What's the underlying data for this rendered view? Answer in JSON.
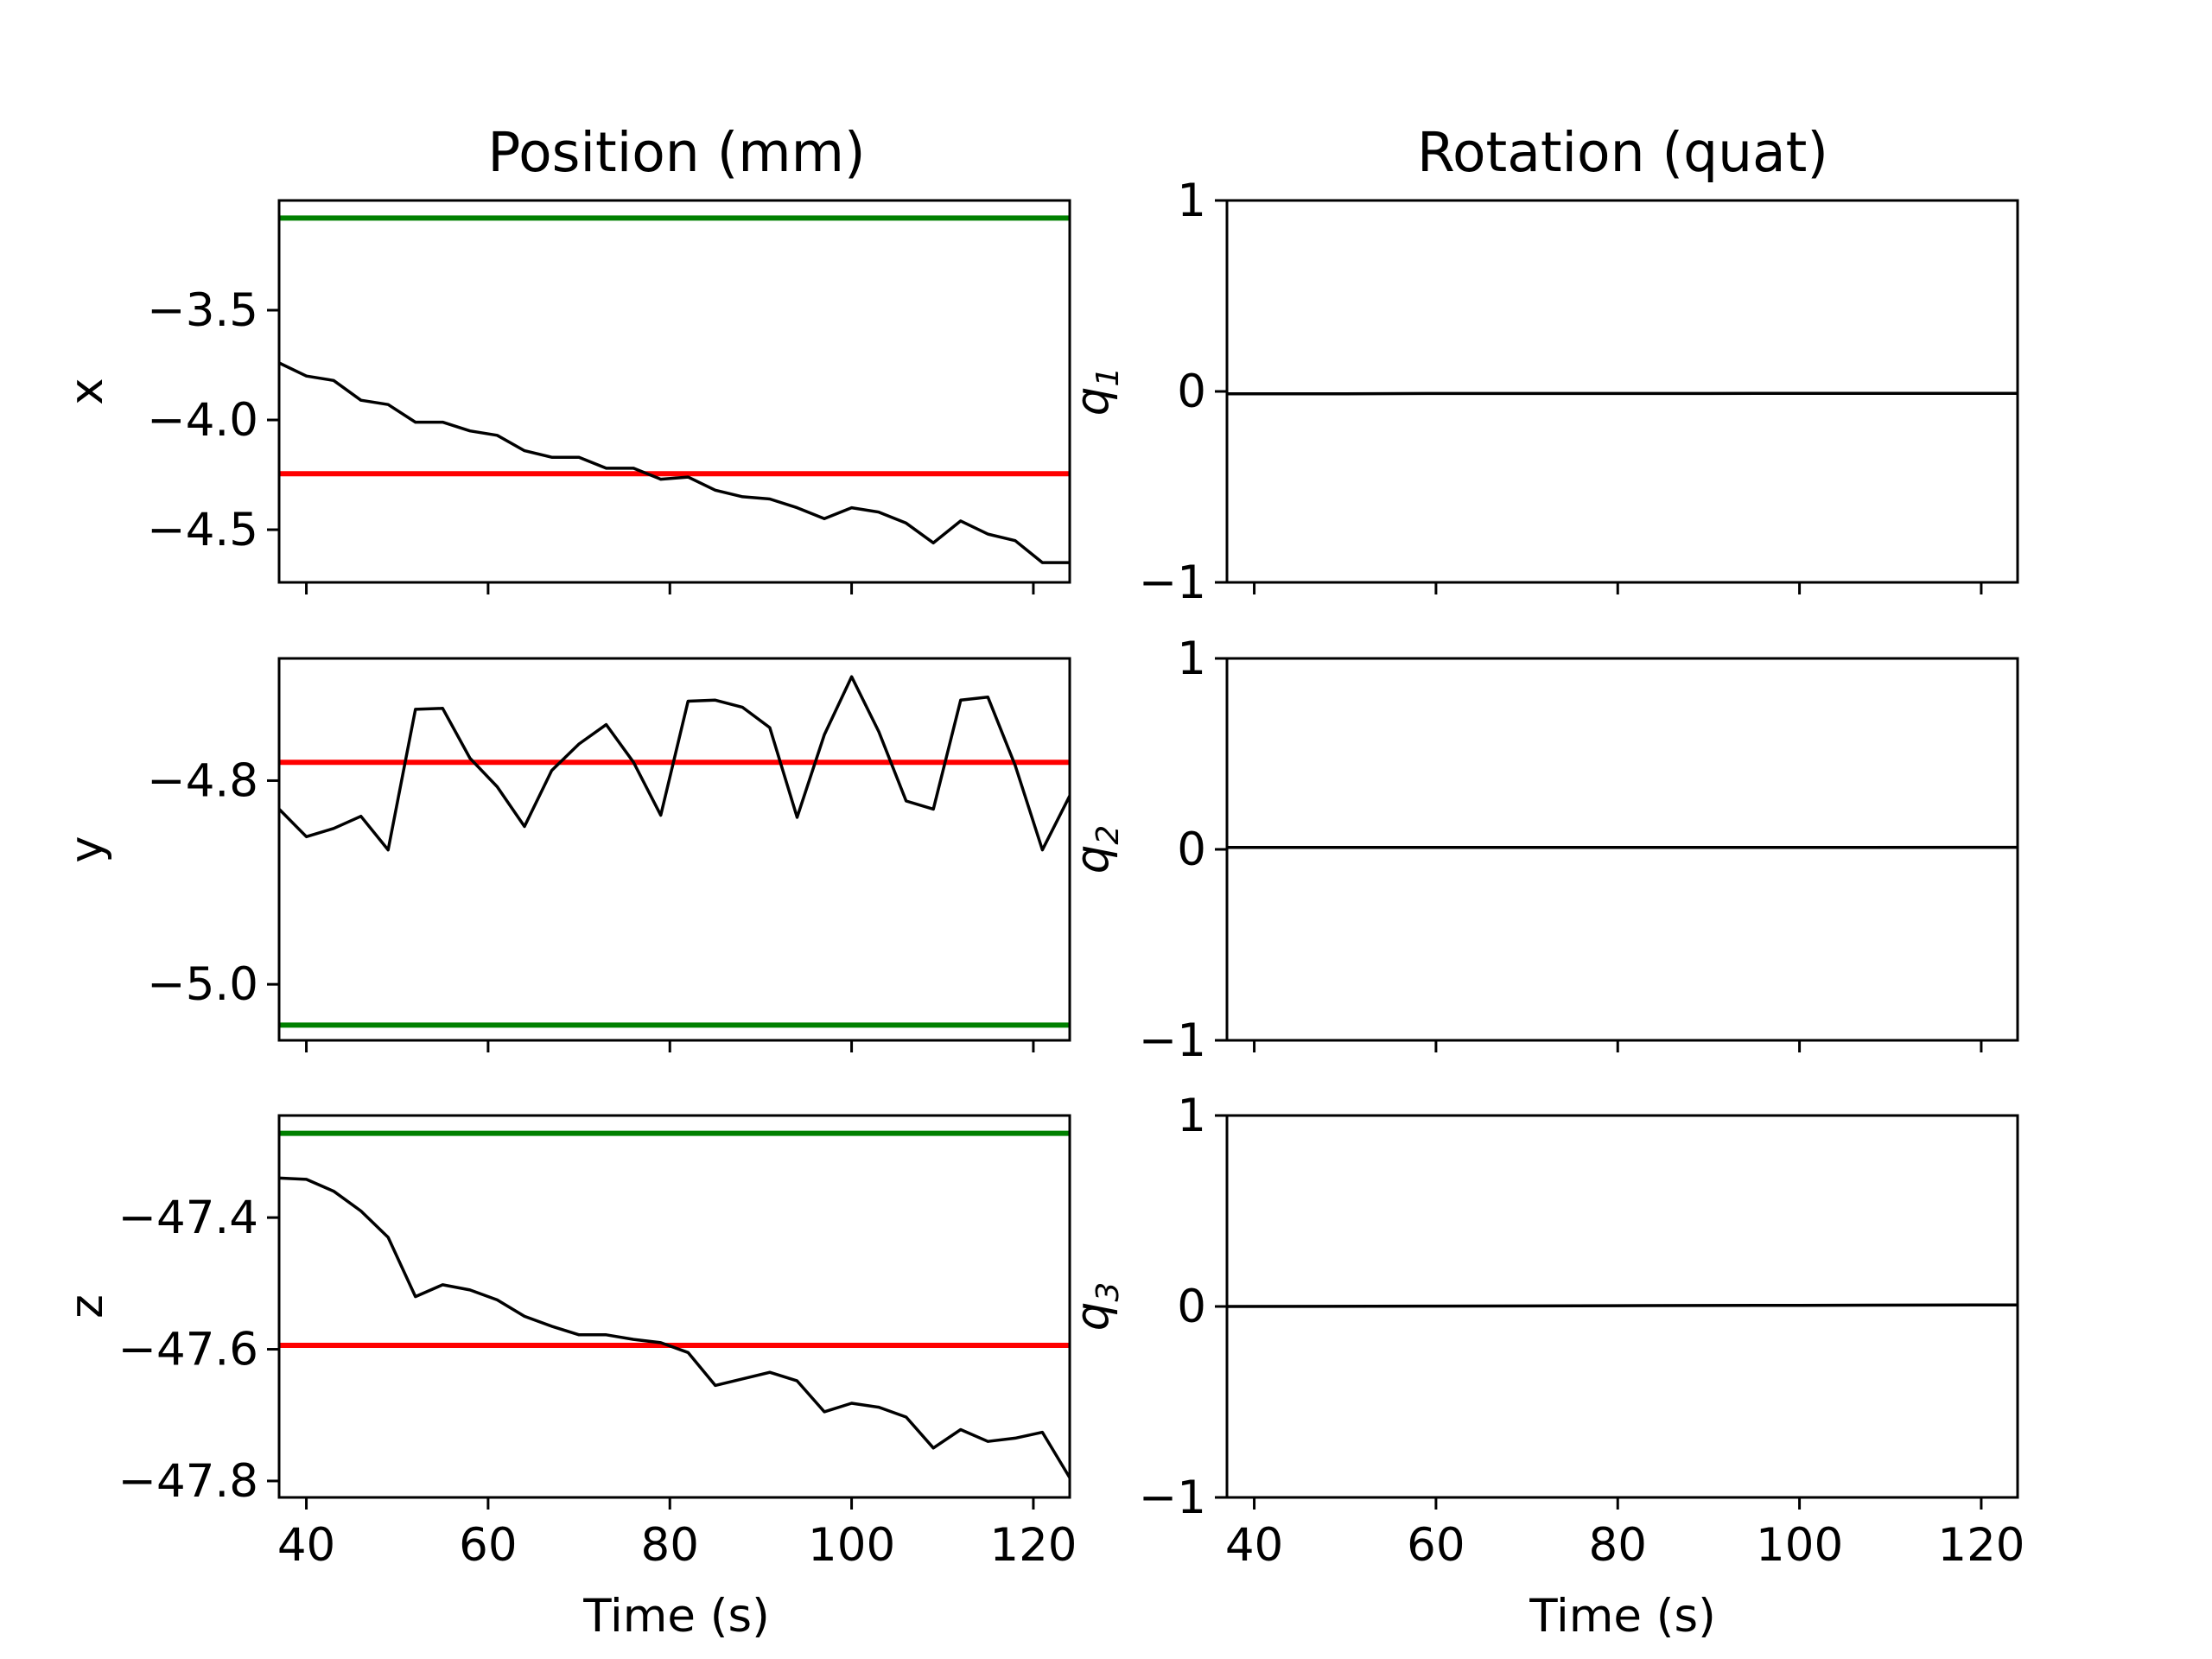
{
  "titles": {
    "left": "Position (mm)",
    "right": "Rotation (quat)"
  },
  "xlabel": "Time (s)",
  "chart_data": [
    {
      "type": "line",
      "panel": "x",
      "ylabel": "x",
      "xlim": [
        37,
        124
      ],
      "ylim": [
        -4.74,
        -3.0
      ],
      "yticks": [
        -3.5,
        -4.0,
        -4.5
      ],
      "ytick_labels": [
        "−3.5",
        "−4.0",
        "−4.5"
      ],
      "xticks": [
        40,
        60,
        80,
        100,
        120
      ],
      "show_xtick_labels": false,
      "hlines": [
        {
          "y": -3.08,
          "color": "#008000"
        },
        {
          "y": -4.245,
          "color": "#ff0000"
        }
      ],
      "series": [
        {
          "color": "#000000",
          "x": [
            37,
            40,
            43,
            46,
            49,
            52,
            55,
            58,
            61,
            64,
            67,
            70,
            73,
            76,
            79,
            82,
            85,
            88,
            91,
            94,
            97,
            100,
            103,
            106,
            109,
            112,
            115,
            118,
            121,
            124
          ],
          "y": [
            -3.74,
            -3.8,
            -3.82,
            -3.91,
            -3.93,
            -4.01,
            -4.01,
            -4.05,
            -4.07,
            -4.14,
            -4.17,
            -4.17,
            -4.22,
            -4.22,
            -4.27,
            -4.26,
            -4.32,
            -4.35,
            -4.36,
            -4.4,
            -4.45,
            -4.4,
            -4.42,
            -4.47,
            -4.56,
            -4.46,
            -4.52,
            -4.55,
            -4.65,
            -4.65
          ]
        }
      ]
    },
    {
      "type": "line",
      "panel": "q1",
      "ylabel": "q",
      "ylabel_sub": "1",
      "xlim": [
        37,
        124
      ],
      "ylim": [
        -1,
        1
      ],
      "yticks": [
        1,
        0,
        -1
      ],
      "ytick_labels": [
        "1",
        "0",
        "−1"
      ],
      "xticks": [
        40,
        60,
        80,
        100,
        120
      ],
      "show_xtick_labels": false,
      "hlines": [],
      "series": [
        {
          "color": "#000000",
          "x": [
            37,
            50,
            60,
            70,
            80,
            90,
            100,
            110,
            124
          ],
          "y": [
            -0.012,
            -0.012,
            -0.011,
            -0.011,
            -0.011,
            -0.011,
            -0.01,
            -0.01,
            -0.01
          ]
        }
      ]
    },
    {
      "type": "line",
      "panel": "y",
      "ylabel": "y",
      "xlim": [
        37,
        124
      ],
      "ylim": [
        -5.055,
        -4.68
      ],
      "yticks": [
        -4.8,
        -5.0
      ],
      "ytick_labels": [
        "−4.8",
        "−5.0"
      ],
      "xticks": [
        40,
        60,
        80,
        100,
        120
      ],
      "show_xtick_labels": false,
      "hlines": [
        {
          "y": -4.782,
          "color": "#ff0000"
        },
        {
          "y": -5.04,
          "color": "#008000"
        }
      ],
      "series": [
        {
          "color": "#000000",
          "x": [
            37,
            40,
            43,
            46,
            49,
            52,
            55,
            58,
            61,
            64,
            67,
            70,
            73,
            76,
            79,
            82,
            85,
            88,
            91,
            94,
            97,
            100,
            103,
            106,
            109,
            112,
            115,
            118,
            121,
            124
          ],
          "y": [
            -4.828,
            -4.855,
            -4.847,
            -4.835,
            -4.868,
            -4.73,
            -4.729,
            -4.778,
            -4.806,
            -4.845,
            -4.79,
            -4.764,
            -4.745,
            -4.782,
            -4.834,
            -4.722,
            -4.721,
            -4.728,
            -4.748,
            -4.836,
            -4.755,
            -4.698,
            -4.752,
            -4.82,
            -4.828,
            -4.721,
            -4.718,
            -4.785,
            -4.868,
            -4.815
          ]
        }
      ]
    },
    {
      "type": "line",
      "panel": "q2",
      "ylabel": "q",
      "ylabel_sub": "2",
      "xlim": [
        37,
        124
      ],
      "ylim": [
        -1,
        1
      ],
      "yticks": [
        1,
        0,
        -1
      ],
      "ytick_labels": [
        "1",
        "0",
        "−1"
      ],
      "xticks": [
        40,
        60,
        80,
        100,
        120
      ],
      "show_xtick_labels": false,
      "hlines": [],
      "series": [
        {
          "color": "#000000",
          "x": [
            37,
            60,
            80,
            100,
            124
          ],
          "y": [
            0.01,
            0.01,
            0.01,
            0.01,
            0.011
          ]
        }
      ]
    },
    {
      "type": "line",
      "panel": "z",
      "ylabel": "z",
      "xlim": [
        37,
        124
      ],
      "ylim": [
        -47.825,
        -47.245
      ],
      "yticks": [
        -47.4,
        -47.6,
        -47.8
      ],
      "ytick_labels": [
        "−47.4",
        "−47.6",
        "−47.8"
      ],
      "xticks": [
        40,
        60,
        80,
        100,
        120
      ],
      "show_xtick_labels": true,
      "xtick_labels": [
        "40",
        "60",
        "80",
        "100",
        "120"
      ],
      "hlines": [
        {
          "y": -47.272,
          "color": "#008000"
        },
        {
          "y": -47.594,
          "color": "#ff0000"
        }
      ],
      "series": [
        {
          "color": "#000000",
          "x": [
            37,
            40,
            43,
            46,
            49,
            52,
            55,
            58,
            61,
            64,
            67,
            70,
            73,
            76,
            79,
            82,
            85,
            88,
            91,
            94,
            97,
            100,
            103,
            106,
            109,
            112,
            115,
            118,
            121,
            124
          ],
          "y": [
            -47.34,
            -47.342,
            -47.36,
            -47.39,
            -47.43,
            -47.52,
            -47.502,
            -47.51,
            -47.525,
            -47.55,
            -47.565,
            -47.578,
            -47.578,
            -47.585,
            -47.59,
            -47.605,
            -47.655,
            -47.645,
            -47.635,
            -47.648,
            -47.695,
            -47.682,
            -47.688,
            -47.703,
            -47.75,
            -47.722,
            -47.74,
            -47.735,
            -47.726,
            -47.795
          ]
        }
      ]
    },
    {
      "type": "line",
      "panel": "q3",
      "ylabel": "q",
      "ylabel_sub": "3",
      "xlim": [
        37,
        124
      ],
      "ylim": [
        -1,
        1
      ],
      "yticks": [
        1,
        0,
        -1
      ],
      "ytick_labels": [
        "1",
        "0",
        "−1"
      ],
      "xticks": [
        40,
        60,
        80,
        100,
        120
      ],
      "show_xtick_labels": true,
      "xtick_labels": [
        "40",
        "60",
        "80",
        "100",
        "120"
      ],
      "hlines": [],
      "series": [
        {
          "color": "#000000",
          "x": [
            37,
            60,
            80,
            100,
            124
          ],
          "y": [
            0.0,
            0.002,
            0.004,
            0.006,
            0.008
          ]
        }
      ]
    }
  ]
}
